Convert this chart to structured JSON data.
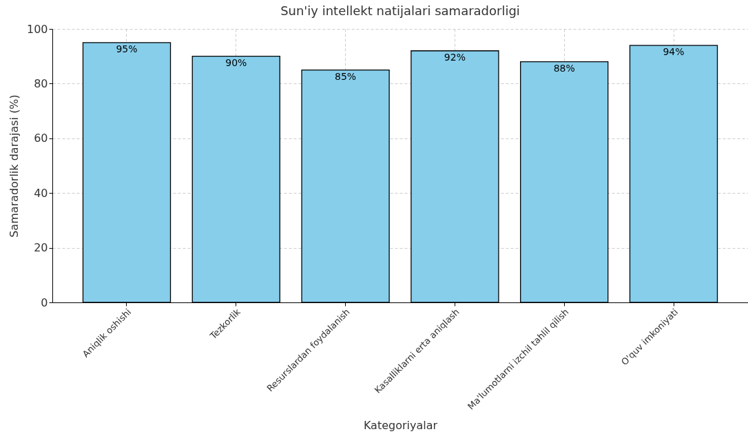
{
  "chart_data": {
    "type": "bar",
    "title": "Sun'iy intellekt natijalari samaradorligi",
    "xlabel": "Kategoriyalar",
    "ylabel": "Samaradorlik darajasi (%)",
    "categories": [
      "Aniqlik oshishi",
      "Tezkorlik",
      "Resurslardan foydalanish",
      "Kasalliklarni erta aniqlash",
      "Ma'lumotlarni izchil tahlil qilish",
      "O'quv imkoniyati"
    ],
    "values": [
      95,
      90,
      85,
      92,
      88,
      94
    ],
    "value_labels": [
      "95%",
      "90%",
      "85%",
      "92%",
      "88%",
      "94%"
    ],
    "color": "#87ceeb",
    "ylim": [
      0,
      100
    ],
    "yticks": [
      0,
      20,
      40,
      60,
      80,
      100
    ],
    "grid": true
  }
}
